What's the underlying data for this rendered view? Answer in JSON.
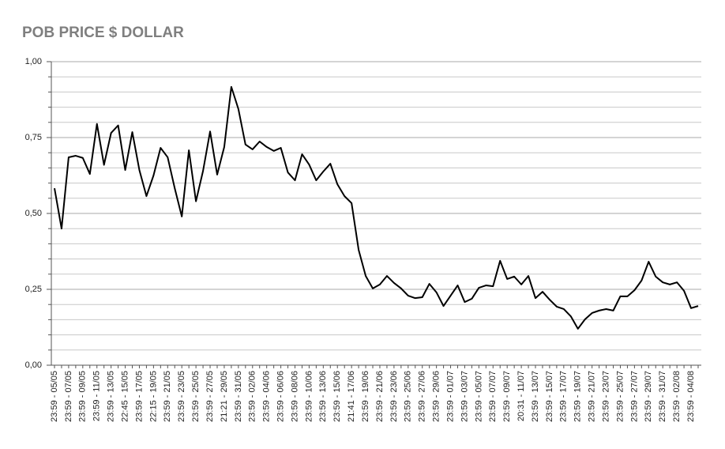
{
  "chart_data": {
    "type": "line",
    "title": "POB PRICE $ DOLLAR",
    "categories": [
      "23:59 - 05/05",
      null,
      "23:59 - 07/05",
      null,
      "23:59 - 09/05",
      null,
      "23:59 - 11/05",
      null,
      "23:59 - 13/05",
      null,
      "22:45 - 15/05",
      null,
      "23:59 - 17/05",
      null,
      "22:15 - 19/05",
      null,
      "23:59 - 21/05",
      null,
      "23:59 - 23/05",
      null,
      "23:59 - 25/05",
      null,
      "23:59 - 27/05",
      null,
      "21:21 - 29/05",
      null,
      "23:59 - 31/05",
      null,
      "23:59 - 02/06",
      null,
      "23:59 - 04/06",
      null,
      "23:59 - 06/06",
      null,
      "23:59 - 08/06",
      null,
      "23:59 - 10/06",
      null,
      "23:59 - 13/06",
      null,
      "23:59 - 15/06",
      null,
      "21:41 - 17/06",
      null,
      "23:59 - 19/06",
      null,
      "23:59 - 21/06",
      null,
      "23:59 - 23/06",
      null,
      "23:59 - 25/06",
      null,
      "23:59 - 27/06",
      null,
      "23:59 - 29/06",
      null,
      "23:59 - 01/07",
      null,
      "23:59 - 03/07",
      null,
      "23:59 - 05/07",
      null,
      "23:59 - 07/07",
      null,
      "23:59 - 09/07",
      null,
      "20:31 - 11/07",
      null,
      "23:59 - 13/07",
      null,
      "23:59 - 15/07",
      null,
      "23:59 - 17/07",
      null,
      "23:59 - 19/07",
      null,
      "23:59 - 21/07",
      null,
      "23:59 - 23/07",
      null,
      "23:59 - 25/07",
      null,
      "23:59 - 27/07",
      null,
      "23:59 - 29/07",
      null,
      "23:59 - 31/07",
      null,
      "23:59 - 02/08",
      null,
      "23:59 - 04/08",
      null
    ],
    "series": [
      {
        "color": "#000000",
        "values": [
          0.583,
          0.45,
          0.685,
          0.69,
          0.683,
          0.63,
          0.795,
          0.66,
          0.765,
          0.79,
          0.643,
          0.768,
          0.643,
          0.557,
          0.625,
          0.716,
          0.685,
          0.583,
          0.49,
          0.708,
          0.54,
          0.64,
          0.77,
          0.628,
          0.719,
          0.917,
          0.844,
          0.727,
          0.711,
          0.737,
          0.719,
          0.706,
          0.716,
          0.635,
          0.609,
          0.695,
          0.661,
          0.609,
          0.638,
          0.664,
          0.596,
          0.557,
          0.534,
          0.38,
          0.294,
          0.253,
          0.266,
          0.294,
          0.271,
          0.253,
          0.229,
          0.221,
          0.224,
          0.268,
          0.24,
          0.195,
          0.229,
          0.263,
          0.208,
          0.219,
          0.255,
          0.263,
          0.26,
          0.344,
          0.284,
          0.292,
          0.266,
          0.294,
          0.221,
          0.242,
          0.216,
          0.193,
          0.185,
          0.161,
          0.12,
          0.151,
          0.172,
          0.18,
          0.185,
          0.18,
          0.227,
          0.227,
          0.247,
          0.279,
          0.341,
          0.292,
          0.273,
          0.266,
          0.273,
          0.245,
          0.188,
          0.195
        ]
      }
    ],
    "ylim": [
      0,
      1
    ],
    "yticks": [
      {
        "value": 0,
        "label": "0,00"
      },
      {
        "value": 0.25,
        "label": "0,25"
      },
      {
        "value": 0.5,
        "label": "0,50"
      },
      {
        "value": 0.75,
        "label": "0,75"
      },
      {
        "value": 1,
        "label": "1,00"
      }
    ],
    "minor_yticks": [
      0.05,
      0.1,
      0.15,
      0.2,
      0.3,
      0.35,
      0.4,
      0.45,
      0.55,
      0.6,
      0.65,
      0.7,
      0.8,
      0.85,
      0.9,
      0.95
    ],
    "grid": true
  }
}
